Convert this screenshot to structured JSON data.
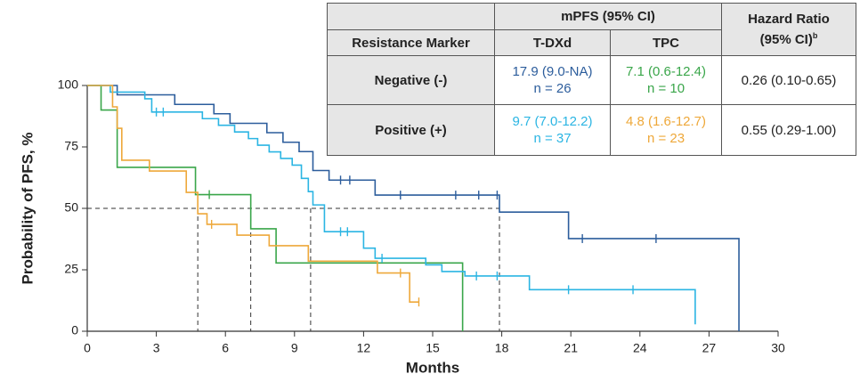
{
  "chart_data": {
    "type": "kaplan-meier",
    "x_label": "Months",
    "y_label": "Probability of PFS, %",
    "xlim": [
      0,
      30
    ],
    "ylim": [
      0,
      100
    ],
    "xticks": [
      0,
      3,
      6,
      9,
      12,
      15,
      18,
      21,
      24,
      27,
      30
    ],
    "yticks": [
      0,
      25,
      50,
      75,
      100
    ],
    "series": [
      {
        "color": "#2c5d9c",
        "x": [
          0,
          1.3,
          3.8,
          5.5,
          6.2,
          7.8,
          8.5,
          9.2,
          9.8,
          10.5,
          12.5,
          17.9,
          20.9,
          28.3
        ],
        "values": [
          100,
          96.2,
          92.3,
          88.5,
          84.6,
          80.8,
          76.9,
          73.1,
          65.4,
          61.5,
          55.4,
          48.5,
          37.7,
          0
        ],
        "censored_x": [
          11.0,
          11.4,
          13.6,
          16.0,
          17.0,
          17.8,
          21.5,
          24.7
        ]
      },
      {
        "color": "#3aa64a",
        "x": [
          0,
          0.6,
          1.3,
          4.7,
          7.1,
          8.2,
          16.3
        ],
        "values": [
          100,
          90,
          66.7,
          55.6,
          41.7,
          27.8,
          0
        ],
        "censored_x": [
          5.3
        ]
      },
      {
        "color": "#2bb5e3",
        "x": [
          0,
          1.0,
          2.5,
          2.8,
          5.0,
          5.7,
          6.4,
          7.0,
          7.4,
          7.9,
          8.4,
          8.9,
          9.3,
          9.6,
          9.8,
          10.3,
          12.0,
          12.5,
          14.7,
          15.4,
          16.4,
          19.2,
          26.4
        ],
        "values": [
          100,
          97.3,
          94.6,
          89.2,
          86.5,
          83.8,
          81.1,
          78.4,
          75.7,
          73.0,
          70.3,
          67.6,
          62.2,
          56.8,
          51.4,
          40.5,
          33.8,
          29.7,
          27.0,
          24.3,
          22.5,
          16.9,
          2.8
        ],
        "censored_x": [
          3.0,
          3.3,
          11.0,
          11.3,
          12.8,
          16.9,
          17.8,
          20.9,
          23.7
        ]
      },
      {
        "color": "#eea83a",
        "x": [
          0,
          1.1,
          1.3,
          1.5,
          2.7,
          4.3,
          4.8,
          5.2,
          6.5,
          7.9,
          9.6,
          12.6,
          14.0
        ],
        "values": [
          100,
          91.3,
          82.6,
          69.6,
          65.2,
          56.5,
          47.8,
          43.5,
          39.1,
          34.8,
          28.5,
          23.7,
          11.9
        ],
        "censored_x": [
          5.4,
          13.6,
          14.4
        ]
      }
    ],
    "reference_lines": {
      "y": 50,
      "x": [
        4.8,
        7.1,
        9.7,
        17.9
      ]
    }
  },
  "table": {
    "group_header": "mPFS (95% CI)",
    "marker_header": "Resistance Marker",
    "tdxd_header": "T-DXd",
    "tpc_header": "TPC",
    "hr_header": "Hazard Ratio",
    "hr_ci_header": "(95% CI)",
    "hr_note": "b",
    "rows": [
      {
        "marker": "Negative (-)",
        "tdxd": "17.9 (9.0-NA)",
        "tdxd_n": "n = 26",
        "tpc": "7.1 (0.6-12.4)",
        "tpc_n": "n = 10",
        "hr": "0.26 (0.10-0.65)"
      },
      {
        "marker": "Positive (+)",
        "tdxd": "9.7 (7.0-12.2)",
        "tdxd_n": "n = 37",
        "tpc": "4.8 (1.6-12.7)",
        "tpc_n": "n = 23",
        "hr": "0.55 (0.29-1.00)"
      }
    ]
  }
}
